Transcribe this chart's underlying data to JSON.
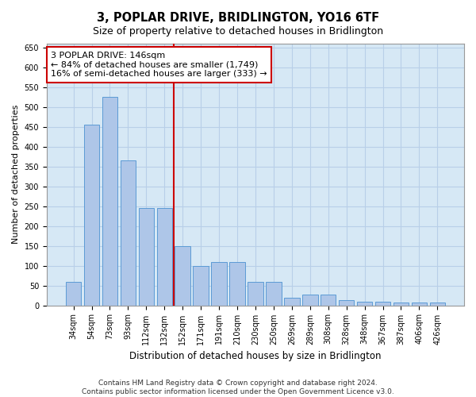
{
  "title": "3, POPLAR DRIVE, BRIDLINGTON, YO16 6TF",
  "subtitle": "Size of property relative to detached houses in Bridlington",
  "xlabel": "Distribution of detached houses by size in Bridlington",
  "ylabel": "Number of detached properties",
  "categories": [
    "34sqm",
    "54sqm",
    "73sqm",
    "93sqm",
    "112sqm",
    "132sqm",
    "152sqm",
    "171sqm",
    "191sqm",
    "210sqm",
    "230sqm",
    "250sqm",
    "269sqm",
    "289sqm",
    "308sqm",
    "328sqm",
    "348sqm",
    "367sqm",
    "387sqm",
    "406sqm",
    "426sqm"
  ],
  "values": [
    60,
    455,
    525,
    365,
    245,
    245,
    150,
    100,
    110,
    110,
    60,
    60,
    20,
    28,
    28,
    14,
    10,
    10,
    8,
    8,
    8
  ],
  "bar_color": "#aec6e8",
  "bar_edge_color": "#5b9bd5",
  "grid_color": "#b8cfe8",
  "background_color": "#d6e8f5",
  "fig_background": "#ffffff",
  "vline_x_index": 5.5,
  "vline_color": "#cc0000",
  "annotation_line1": "3 POPLAR DRIVE: 146sqm",
  "annotation_line2": "← 84% of detached houses are smaller (1,749)",
  "annotation_line3": "16% of semi-detached houses are larger (333) →",
  "annotation_box_color": "#ffffff",
  "annotation_box_edge": "#cc0000",
  "footer": "Contains HM Land Registry data © Crown copyright and database right 2024.\nContains public sector information licensed under the Open Government Licence v3.0.",
  "ylim": [
    0,
    660
  ],
  "yticks": [
    0,
    50,
    100,
    150,
    200,
    250,
    300,
    350,
    400,
    450,
    500,
    550,
    600,
    650
  ],
  "figsize": [
    6.0,
    5.0
  ],
  "dpi": 100,
  "title_fontsize": 10.5,
  "subtitle_fontsize": 9,
  "tick_fontsize": 7,
  "ylabel_fontsize": 8,
  "xlabel_fontsize": 8.5,
  "annotation_fontsize": 8,
  "footer_fontsize": 6.5
}
